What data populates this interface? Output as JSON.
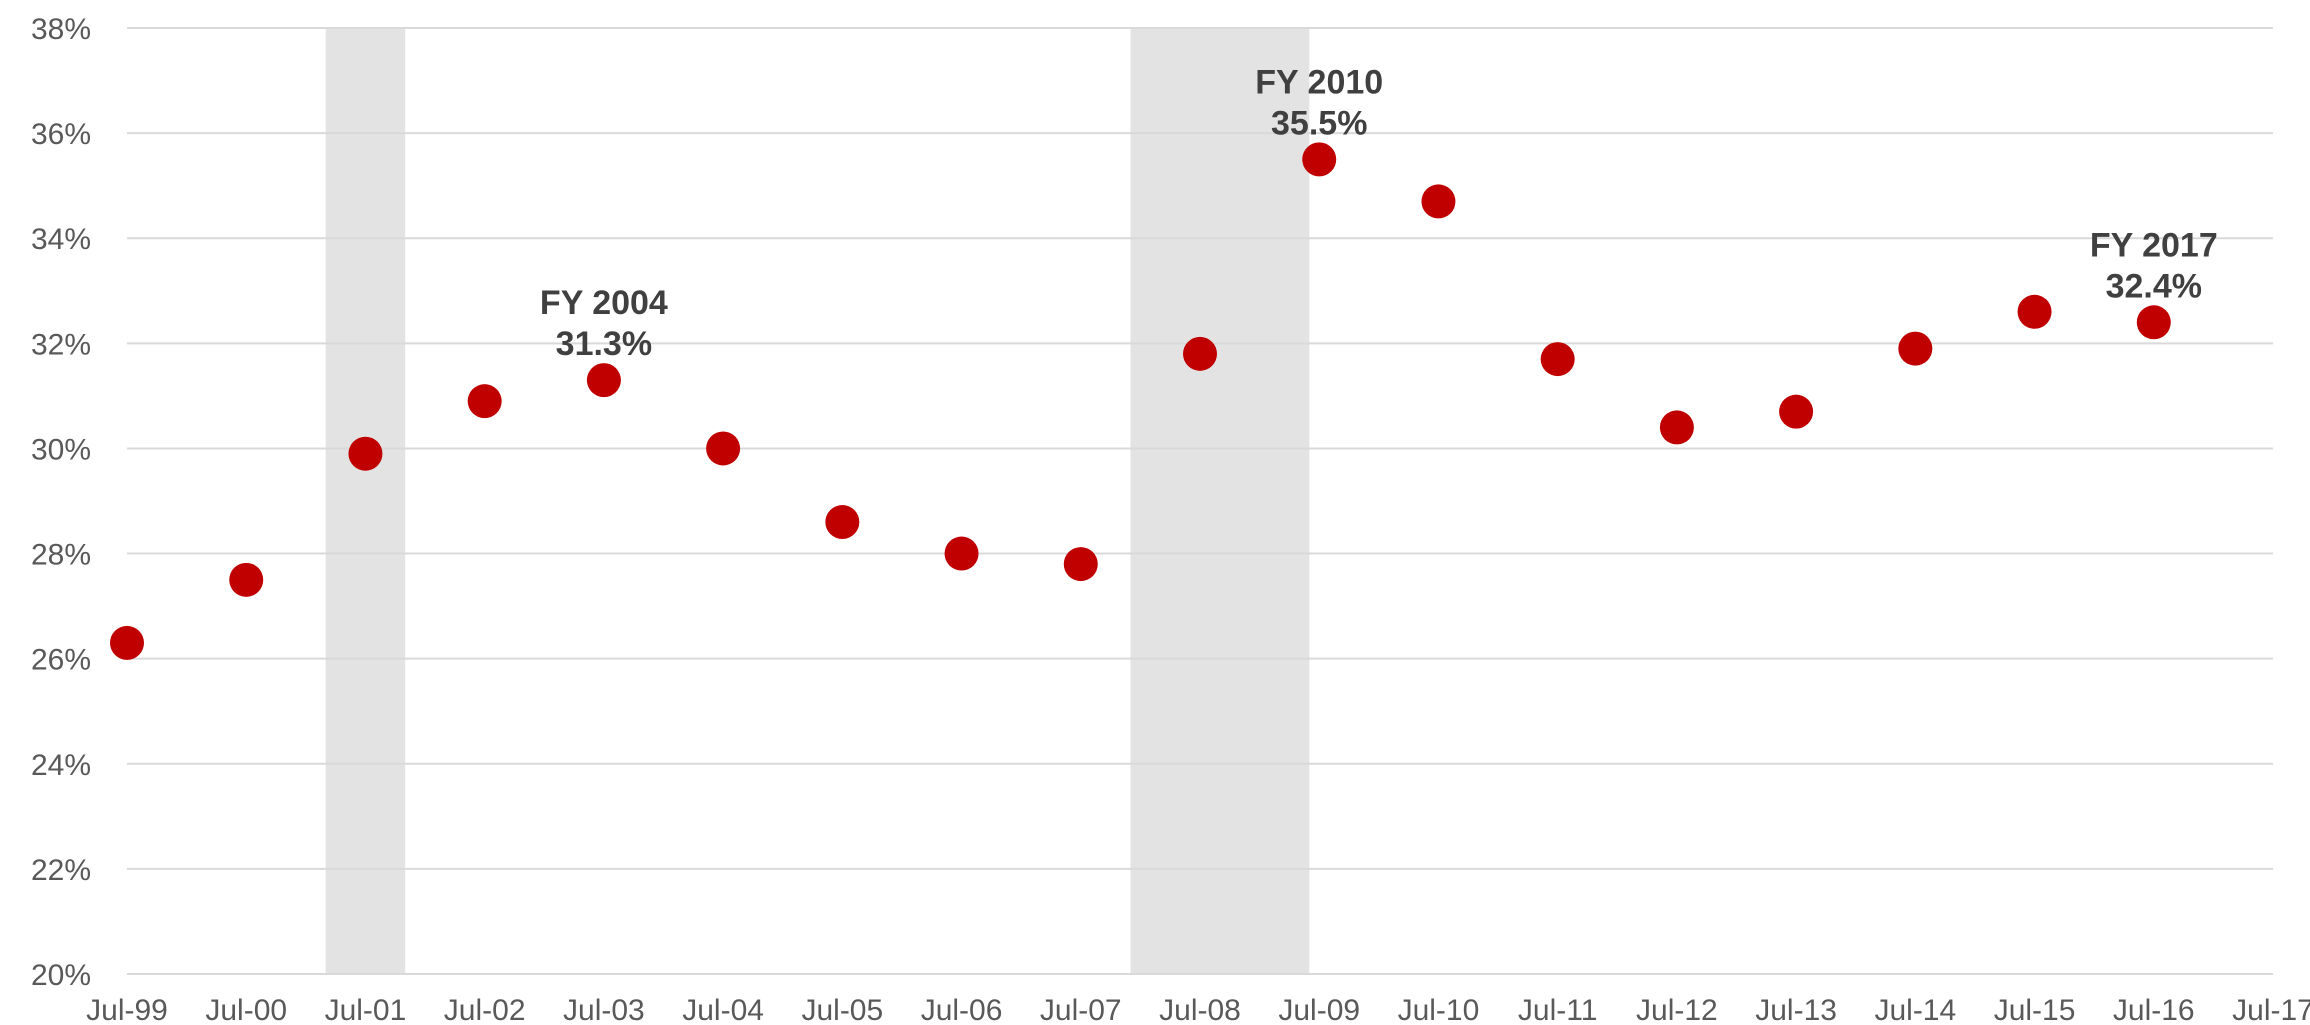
{
  "chart_data": {
    "type": "scatter",
    "title": "",
    "xlabel": "",
    "ylabel": "",
    "x_tick_labels": [
      "Jul-99",
      "Jul-00",
      "Jul-01",
      "Jul-02",
      "Jul-03",
      "Jul-04",
      "Jul-05",
      "Jul-06",
      "Jul-07",
      "Jul-08",
      "Jul-09",
      "Jul-10",
      "Jul-11",
      "Jul-12",
      "Jul-13",
      "Jul-14",
      "Jul-15",
      "Jul-16",
      "Jul-17"
    ],
    "y_tick_labels": [
      "20%",
      "22%",
      "24%",
      "26%",
      "28%",
      "30%",
      "32%",
      "34%",
      "36%",
      "38%"
    ],
    "xlim": [
      "1999-07",
      "2017-07"
    ],
    "ylim": [
      20,
      38
    ],
    "grid": true,
    "legend": "none",
    "series": [
      {
        "color": "#c00000",
        "points": [
          {
            "x": "1999-07",
            "y": 26.3
          },
          {
            "x": "2000-07",
            "y": 27.5
          },
          {
            "x": "2001-07",
            "y": 29.9
          },
          {
            "x": "2002-07",
            "y": 30.9
          },
          {
            "x": "2003-07",
            "y": 31.3
          },
          {
            "x": "2004-07",
            "y": 30.0
          },
          {
            "x": "2005-07",
            "y": 28.6
          },
          {
            "x": "2006-07",
            "y": 28.0
          },
          {
            "x": "2007-07",
            "y": 27.8
          },
          {
            "x": "2008-07",
            "y": 31.8
          },
          {
            "x": "2009-07",
            "y": 35.5
          },
          {
            "x": "2010-07",
            "y": 34.7
          },
          {
            "x": "2011-07",
            "y": 31.7
          },
          {
            "x": "2012-07",
            "y": 30.4
          },
          {
            "x": "2013-07",
            "y": 30.7
          },
          {
            "x": "2014-07",
            "y": 31.9
          },
          {
            "x": "2015-07",
            "y": 32.6
          },
          {
            "x": "2016-07",
            "y": 32.4
          }
        ]
      }
    ],
    "shaded_periods": [
      {
        "start": "2001-03",
        "end": "2001-11",
        "color": "#e3e3e3"
      },
      {
        "start": "2007-12",
        "end": "2009-06",
        "color": "#e3e3e3"
      }
    ],
    "annotations": [
      {
        "x": "2003-07",
        "y": 31.3,
        "line1": "FY 2004",
        "line2": "31.3%"
      },
      {
        "x": "2009-07",
        "y": 35.5,
        "line1": "FY 2010",
        "line2": "35.5%"
      },
      {
        "x": "2016-07",
        "y": 32.4,
        "line1": "FY 2017",
        "line2": "32.4%"
      }
    ],
    "colors": {
      "grid": "#d9d9d9",
      "axis_text": "#595959",
      "annotation_text": "#404040",
      "marker": "#c00000"
    }
  }
}
